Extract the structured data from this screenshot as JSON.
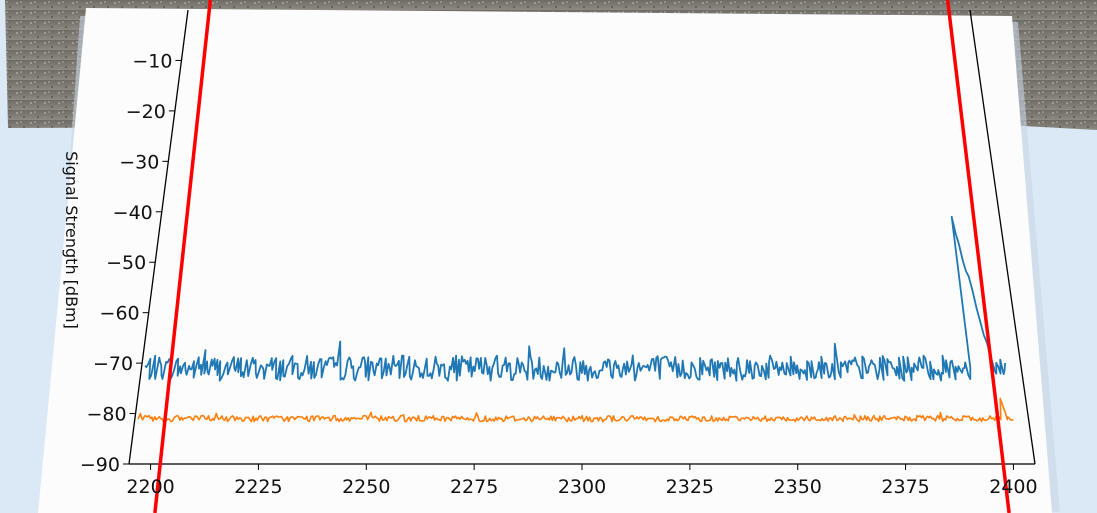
{
  "chart_data": {
    "type": "line",
    "ylabel": "Signal Strength [dBm]",
    "xlim": [
      2195,
      2405
    ],
    "ylim": [
      -90,
      0
    ],
    "x_ticks": [
      2200,
      2225,
      2250,
      2275,
      2300,
      2325,
      2350,
      2375,
      2400
    ],
    "y_ticks": [
      -10,
      -20,
      -30,
      -40,
      -50,
      -60,
      -70,
      -80,
      -90
    ],
    "grid": false,
    "series": [
      {
        "color": "#1f77b4",
        "baseline": -71,
        "noise": 2.5,
        "spike": {
          "x_start": 2393,
          "x_peak": 2393,
          "peak": -41,
          "x_end": 2398.5
        }
      },
      {
        "color": "#ff7f0e",
        "baseline": -81,
        "noise": 0.6,
        "spike": {
          "x_start": 2398.5,
          "x_peak": 2399,
          "peak": -77,
          "x_end": 2400
        }
      }
    ],
    "reference_lines": [
      {
        "x": 2201,
        "color": "#ff0000"
      },
      {
        "x": 2399,
        "color": "#ff0000"
      }
    ]
  }
}
